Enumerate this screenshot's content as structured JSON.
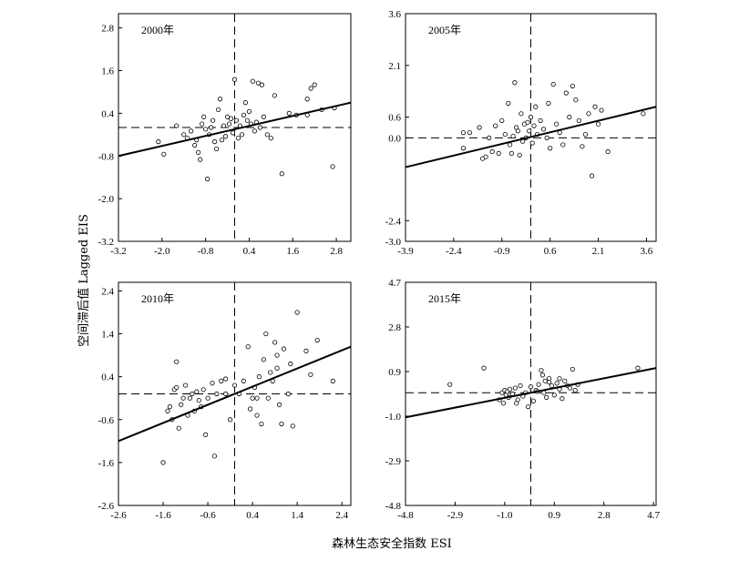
{
  "figure": {
    "ylabel": "空间滞后值 Lagged EIS",
    "xlabel": "森林生态安全指数 ESI"
  },
  "chart_data": [
    {
      "type": "scatter",
      "title": "2000年",
      "xlim": [
        -3.2,
        3.2
      ],
      "ylim": [
        -3.2,
        3.2
      ],
      "xticks": [
        -3.2,
        -2.0,
        -0.8,
        0.4,
        1.6,
        2.8
      ],
      "yticks": [
        -3.2,
        -2.0,
        -0.8,
        0.4,
        1.6,
        2.8
      ],
      "mean_x": 0.0,
      "mean_y": 0.0,
      "fit": {
        "x1": -3.2,
        "y1": -0.8,
        "x2": 3.2,
        "y2": 0.7
      },
      "points": [
        [
          -2.1,
          -0.4
        ],
        [
          -1.95,
          -0.75
        ],
        [
          -1.6,
          0.05
        ],
        [
          -1.4,
          -0.2
        ],
        [
          -1.3,
          -0.3
        ],
        [
          -1.2,
          -0.1
        ],
        [
          -1.1,
          -0.5
        ],
        [
          -1.05,
          -0.35
        ],
        [
          -1.0,
          -0.7
        ],
        [
          -0.95,
          -0.9
        ],
        [
          -0.9,
          0.1
        ],
        [
          -0.85,
          0.3
        ],
        [
          -0.8,
          -0.05
        ],
        [
          -0.75,
          -1.45
        ],
        [
          -0.7,
          -0.2
        ],
        [
          -0.65,
          0.0
        ],
        [
          -0.6,
          0.2
        ],
        [
          -0.55,
          -0.4
        ],
        [
          -0.5,
          -0.6
        ],
        [
          -0.45,
          0.5
        ],
        [
          -0.4,
          0.8
        ],
        [
          -0.35,
          -0.35
        ],
        [
          -0.3,
          0.05
        ],
        [
          -0.25,
          -0.25
        ],
        [
          -0.2,
          0.3
        ],
        [
          -0.15,
          0.1
        ],
        [
          -0.1,
          0.25
        ],
        [
          -0.05,
          -0.15
        ],
        [
          0.0,
          1.35
        ],
        [
          0.05,
          0.2
        ],
        [
          0.1,
          -0.3
        ],
        [
          0.15,
          0.05
        ],
        [
          0.2,
          -0.2
        ],
        [
          0.25,
          0.35
        ],
        [
          0.3,
          0.7
        ],
        [
          0.35,
          0.2
        ],
        [
          0.4,
          0.45
        ],
        [
          0.45,
          0.1
        ],
        [
          0.5,
          1.3
        ],
        [
          0.55,
          -0.1
        ],
        [
          0.6,
          0.15
        ],
        [
          0.65,
          1.25
        ],
        [
          0.7,
          0.0
        ],
        [
          0.75,
          1.2
        ],
        [
          0.8,
          0.3
        ],
        [
          0.9,
          -0.2
        ],
        [
          1.0,
          -0.3
        ],
        [
          1.1,
          0.9
        ],
        [
          1.3,
          -1.3
        ],
        [
          1.5,
          0.4
        ],
        [
          1.7,
          0.35
        ],
        [
          2.0,
          0.8
        ],
        [
          2.1,
          1.1
        ],
        [
          2.2,
          1.2
        ],
        [
          2.4,
          0.5
        ],
        [
          2.7,
          -1.1
        ],
        [
          2.75,
          0.55
        ],
        [
          2.0,
          0.35
        ]
      ]
    },
    {
      "type": "scatter",
      "title": "2005年",
      "xlim": [
        -3.9,
        3.9
      ],
      "ylim": [
        -3.0,
        3.6
      ],
      "xticks": [
        -3.9,
        -2.4,
        -0.9,
        0.6,
        2.1,
        3.6
      ],
      "yticks": [
        -3.0,
        -2.4,
        0.0,
        0.6,
        2.1,
        3.6
      ],
      "mean_x": 0.0,
      "mean_y": 0.0,
      "fit": {
        "x1": -3.9,
        "y1": -0.85,
        "x2": 3.9,
        "y2": 0.9
      },
      "points": [
        [
          -2.1,
          -0.3
        ],
        [
          -1.9,
          0.15
        ],
        [
          -1.6,
          0.3
        ],
        [
          -1.5,
          -0.6
        ],
        [
          -1.4,
          -0.55
        ],
        [
          -1.3,
          0.0
        ],
        [
          -1.2,
          -0.4
        ],
        [
          -1.1,
          0.35
        ],
        [
          -1.0,
          -0.45
        ],
        [
          -0.9,
          0.5
        ],
        [
          -0.8,
          0.1
        ],
        [
          -0.7,
          1.0
        ],
        [
          -0.65,
          -0.2
        ],
        [
          -0.6,
          -0.45
        ],
        [
          -0.55,
          0.05
        ],
        [
          -0.5,
          1.6
        ],
        [
          -0.45,
          0.3
        ],
        [
          -0.4,
          0.2
        ],
        [
          -0.35,
          -0.5
        ],
        [
          -0.3,
          0.7
        ],
        [
          -0.25,
          -0.1
        ],
        [
          -0.2,
          0.4
        ],
        [
          -0.15,
          0.0
        ],
        [
          -0.1,
          0.45
        ],
        [
          -0.05,
          0.2
        ],
        [
          0.0,
          0.6
        ],
        [
          0.05,
          -0.15
        ],
        [
          0.1,
          0.35
        ],
        [
          0.15,
          0.9
        ],
        [
          0.2,
          0.1
        ],
        [
          0.3,
          0.5
        ],
        [
          0.4,
          0.25
        ],
        [
          0.5,
          0.0
        ],
        [
          0.55,
          1.0
        ],
        [
          0.6,
          -0.3
        ],
        [
          0.7,
          1.55
        ],
        [
          0.8,
          0.4
        ],
        [
          0.9,
          0.15
        ],
        [
          1.0,
          -0.2
        ],
        [
          1.1,
          1.3
        ],
        [
          1.2,
          0.6
        ],
        [
          1.3,
          1.5
        ],
        [
          1.4,
          1.1
        ],
        [
          1.5,
          0.5
        ],
        [
          1.6,
          -0.25
        ],
        [
          1.7,
          0.1
        ],
        [
          1.8,
          0.7
        ],
        [
          1.9,
          -1.1
        ],
        [
          2.0,
          0.9
        ],
        [
          2.1,
          0.4
        ],
        [
          2.2,
          0.8
        ],
        [
          2.4,
          -0.4
        ],
        [
          3.5,
          0.7
        ],
        [
          -2.1,
          0.15
        ]
      ]
    },
    {
      "type": "scatter",
      "title": "2010年",
      "xlim": [
        -2.6,
        2.6
      ],
      "ylim": [
        -2.6,
        2.6
      ],
      "xticks": [
        -2.6,
        -1.6,
        -0.6,
        0.4,
        1.4,
        2.4
      ],
      "yticks": [
        -2.6,
        -1.6,
        -0.6,
        0.4,
        1.4,
        2.4
      ],
      "mean_x": 0.0,
      "mean_y": 0.0,
      "fit": {
        "x1": -2.6,
        "y1": -1.1,
        "x2": 2.6,
        "y2": 1.1
      },
      "points": [
        [
          -1.6,
          -1.6
        ],
        [
          -1.5,
          -0.4
        ],
        [
          -1.45,
          -0.3
        ],
        [
          -1.4,
          -0.6
        ],
        [
          -1.35,
          0.1
        ],
        [
          -1.3,
          0.15
        ],
        [
          -1.25,
          -0.8
        ],
        [
          -1.2,
          -0.25
        ],
        [
          -1.15,
          -0.1
        ],
        [
          -1.1,
          0.2
        ],
        [
          -1.05,
          -0.5
        ],
        [
          -1.0,
          -0.1
        ],
        [
          -0.95,
          0.0
        ],
        [
          -0.9,
          -0.4
        ],
        [
          -0.85,
          0.05
        ],
        [
          -0.8,
          -0.15
        ],
        [
          -0.75,
          -0.3
        ],
        [
          -0.7,
          0.1
        ],
        [
          -0.65,
          -0.95
        ],
        [
          -0.6,
          -0.1
        ],
        [
          -0.5,
          0.25
        ],
        [
          -0.45,
          -1.45
        ],
        [
          -0.4,
          0.0
        ],
        [
          -0.3,
          0.3
        ],
        [
          -0.2,
          0.0
        ],
        [
          -0.1,
          -0.6
        ],
        [
          0.0,
          0.2
        ],
        [
          0.1,
          0.0
        ],
        [
          0.2,
          0.3
        ],
        [
          0.3,
          1.1
        ],
        [
          0.35,
          -0.35
        ],
        [
          0.4,
          -0.1
        ],
        [
          0.45,
          0.15
        ],
        [
          0.5,
          -0.5
        ],
        [
          0.55,
          0.4
        ],
        [
          0.6,
          -0.7
        ],
        [
          0.65,
          0.8
        ],
        [
          0.7,
          1.4
        ],
        [
          0.75,
          -0.1
        ],
        [
          0.8,
          0.5
        ],
        [
          0.85,
          0.3
        ],
        [
          0.9,
          1.2
        ],
        [
          0.95,
          0.6
        ],
        [
          1.0,
          -0.25
        ],
        [
          1.05,
          -0.7
        ],
        [
          1.1,
          1.05
        ],
        [
          1.2,
          0.0
        ],
        [
          1.25,
          0.7
        ],
        [
          1.3,
          -0.75
        ],
        [
          1.4,
          1.9
        ],
        [
          1.6,
          1.0
        ],
        [
          1.7,
          0.45
        ],
        [
          1.85,
          1.25
        ],
        [
          2.2,
          0.3
        ],
        [
          -1.3,
          0.75
        ],
        [
          0.95,
          0.9
        ],
        [
          0.5,
          -0.1
        ],
        [
          -0.2,
          0.35
        ]
      ]
    },
    {
      "type": "scatter",
      "title": "2015年",
      "xlim": [
        -4.8,
        4.8
      ],
      "ylim": [
        -4.8,
        4.7
      ],
      "xticks": [
        -4.8,
        -2.9,
        -1.0,
        0.9,
        2.8,
        4.7
      ],
      "yticks": [
        -4.8,
        -2.9,
        -1.0,
        0.9,
        2.8,
        4.7
      ],
      "mean_x": 0.0,
      "mean_y": 0.0,
      "fit": {
        "x1": -4.8,
        "y1": -1.05,
        "x2": 4.8,
        "y2": 1.05
      },
      "points": [
        [
          -3.1,
          0.35
        ],
        [
          -1.8,
          1.05
        ],
        [
          -1.2,
          -0.3
        ],
        [
          -1.1,
          0.0
        ],
        [
          -1.05,
          -0.45
        ],
        [
          -1.0,
          0.1
        ],
        [
          -0.95,
          -0.1
        ],
        [
          -0.9,
          0.05
        ],
        [
          -0.85,
          -0.2
        ],
        [
          -0.8,
          0.15
        ],
        [
          -0.7,
          -0.05
        ],
        [
          -0.6,
          0.2
        ],
        [
          -0.5,
          -0.3
        ],
        [
          -0.4,
          0.3
        ],
        [
          -0.3,
          -0.15
        ],
        [
          -0.2,
          0.0
        ],
        [
          -0.1,
          -0.6
        ],
        [
          0.0,
          0.25
        ],
        [
          0.1,
          -0.35
        ],
        [
          0.2,
          0.1
        ],
        [
          0.3,
          0.35
        ],
        [
          0.4,
          0.95
        ],
        [
          0.45,
          0.75
        ],
        [
          0.5,
          0.0
        ],
        [
          0.55,
          0.5
        ],
        [
          0.6,
          -0.2
        ],
        [
          0.7,
          0.6
        ],
        [
          0.8,
          0.3
        ],
        [
          0.9,
          -0.1
        ],
        [
          1.0,
          0.4
        ],
        [
          1.1,
          0.15
        ],
        [
          1.2,
          -0.25
        ],
        [
          1.3,
          0.5
        ],
        [
          1.4,
          0.3
        ],
        [
          1.5,
          0.2
        ],
        [
          1.6,
          1.0
        ],
        [
          1.7,
          0.1
        ],
        [
          1.8,
          0.35
        ],
        [
          4.1,
          1.05
        ],
        [
          0.7,
          0.45
        ],
        [
          -0.55,
          -0.45
        ],
        [
          1.1,
          0.6
        ],
        [
          0.25,
          0.05
        ]
      ]
    }
  ]
}
